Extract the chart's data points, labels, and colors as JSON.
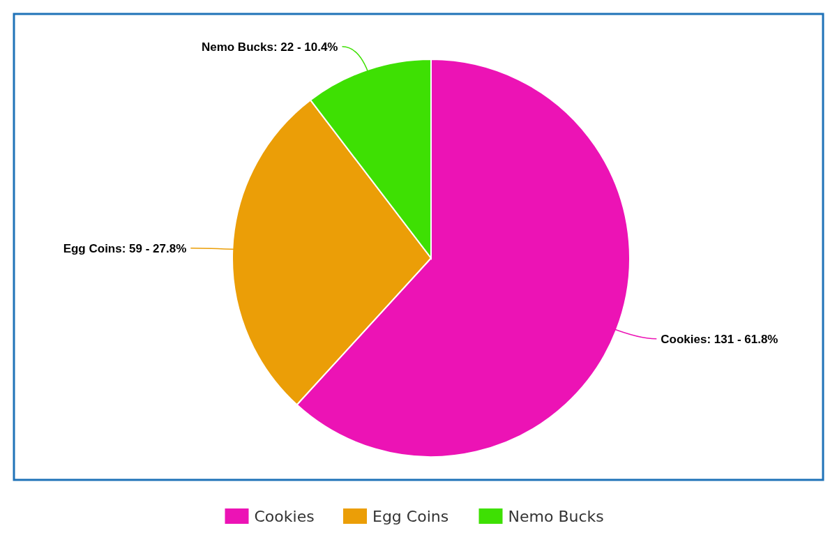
{
  "chart_data": {
    "type": "pie",
    "categories": [
      "Cookies",
      "Egg Coins",
      "Nemo Bucks"
    ],
    "values": [
      131,
      59,
      22
    ],
    "colors": [
      "#ec13b5",
      "#eb9e07",
      "#3ee003"
    ],
    "value_labels": [
      "Cookies: 131 - 61.8%",
      "Egg Coins: 59 - 27.8%",
      "Nemo Bucks: 22 - 10.4%"
    ],
    "legend": "bottom"
  }
}
